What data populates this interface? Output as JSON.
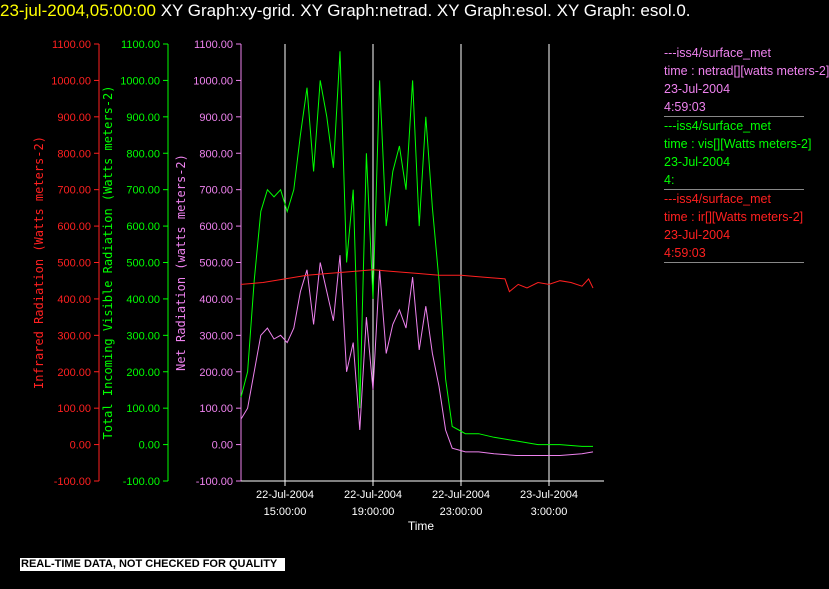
{
  "header": {
    "timestamp": "23-jul-2004,05:00:00",
    "titles": "  XY Graph:xy-grid.  XY Graph:netrad.  XY Graph:esol.  XY Graph: esol.0."
  },
  "legend": [
    {
      "line1": "---iss4/surface_met",
      "line2": "time : netrad[][watts meters-2]",
      "line3": "23-Jul-2004",
      "line4": "4:59:03",
      "color": "#ee82ee"
    },
    {
      "line1": "---iss4/surface_met",
      "line2": "time : vis[][Watts meters-2]",
      "line3": "23-Jul-2004",
      "line4": "4:",
      "color": "#00ff00"
    },
    {
      "line1": "---iss4/surface_met",
      "line2": "time : ir[][Watts meters-2]",
      "line3": "23-Jul-2004",
      "line4": "4:59:03",
      "color": "#ff2020"
    }
  ],
  "footer": {
    "quality_note": "REAL-TIME DATA, NOT CHECKED FOR QUALITY"
  },
  "chart_data": {
    "type": "line",
    "xlabel": "Time",
    "x_ticks": [
      {
        "label": "22-Jul-2004",
        "sub": "15:00:00",
        "hour": 15
      },
      {
        "label": "22-Jul-2004",
        "sub": "19:00:00",
        "hour": 19
      },
      {
        "label": "22-Jul-2004",
        "sub": "23:00:00",
        "hour": 23
      },
      {
        "label": "23-Jul-2004",
        "sub": "3:00:00",
        "hour": 27
      }
    ],
    "xlim_hours": [
      13.0,
      29.5
    ],
    "y_axes": [
      {
        "label": "Infrared Radiation (Watts meters-2)",
        "color": "#ff2020",
        "ylim": [
          -100,
          1100
        ]
      },
      {
        "label": "Total Incoming Visible Radiation (Watts meters-2)",
        "color": "#00ff00",
        "ylim": [
          -100,
          1100
        ]
      },
      {
        "label": "Net Radiation (watts meters-2)",
        "color": "#ee82ee",
        "ylim": [
          -100,
          1100
        ]
      }
    ],
    "y_ticks": [
      "1100.00",
      "1000.00",
      "900.00",
      "800.00",
      "700.00",
      "600.00",
      "500.00",
      "400.00",
      "300.00",
      "200.00",
      "100.00",
      "0.00",
      "-100.00"
    ],
    "grid": "vertical",
    "series": [
      {
        "name": "vis",
        "color": "#00ff00",
        "x": [
          13.0,
          13.3,
          13.6,
          13.9,
          14.2,
          14.5,
          14.8,
          15.1,
          15.4,
          15.7,
          16.0,
          16.3,
          16.6,
          16.9,
          17.2,
          17.5,
          17.8,
          18.1,
          18.4,
          18.7,
          19.0,
          19.3,
          19.6,
          19.9,
          20.2,
          20.5,
          20.8,
          21.1,
          21.4,
          21.7,
          22.0,
          22.3,
          22.6,
          22.9,
          23.2,
          23.5,
          23.8,
          24.5,
          25.5,
          26.5,
          27.5,
          28.5,
          29.0
        ],
        "y": [
          130,
          200,
          450,
          640,
          700,
          680,
          700,
          640,
          700,
          850,
          980,
          750,
          1000,
          900,
          760,
          1080,
          500,
          700,
          100,
          800,
          400,
          1000,
          600,
          750,
          820,
          700,
          1000,
          600,
          900,
          650,
          450,
          180,
          50,
          40,
          30,
          30,
          30,
          20,
          10,
          0,
          0,
          -5,
          -5
        ]
      },
      {
        "name": "netrad",
        "color": "#ee82ee",
        "x": [
          13.0,
          13.3,
          13.6,
          13.9,
          14.2,
          14.5,
          14.8,
          15.1,
          15.4,
          15.7,
          16.0,
          16.3,
          16.6,
          16.9,
          17.2,
          17.5,
          17.8,
          18.1,
          18.4,
          18.7,
          19.0,
          19.3,
          19.6,
          19.9,
          20.2,
          20.5,
          20.8,
          21.1,
          21.4,
          21.7,
          22.0,
          22.3,
          22.6,
          22.9,
          23.2,
          23.5,
          23.8,
          24.5,
          25.5,
          26.5,
          27.5,
          28.5,
          29.0
        ],
        "y": [
          70,
          100,
          200,
          300,
          320,
          290,
          300,
          280,
          320,
          420,
          480,
          330,
          500,
          420,
          340,
          520,
          200,
          280,
          40,
          350,
          150,
          480,
          250,
          330,
          370,
          320,
          460,
          260,
          380,
          250,
          160,
          40,
          -10,
          -15,
          -20,
          -20,
          -20,
          -25,
          -30,
          -30,
          -30,
          -25,
          -20
        ]
      },
      {
        "name": "ir",
        "color": "#ff2020",
        "x": [
          13.0,
          14.0,
          15.0,
          16.0,
          17.0,
          18.0,
          19.0,
          20.0,
          21.0,
          22.0,
          23.0,
          24.0,
          25.0,
          25.2,
          25.6,
          26.0,
          26.5,
          27.0,
          27.5,
          28.0,
          28.5,
          28.8,
          29.0
        ],
        "y": [
          440,
          445,
          455,
          465,
          470,
          475,
          480,
          475,
          470,
          465,
          465,
          460,
          455,
          420,
          440,
          430,
          445,
          440,
          450,
          445,
          435,
          455,
          430
        ]
      }
    ]
  }
}
